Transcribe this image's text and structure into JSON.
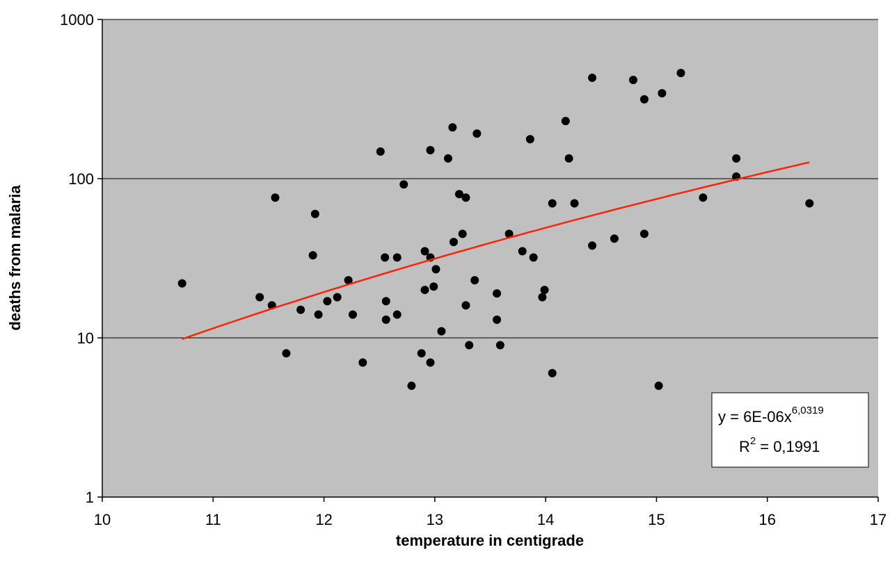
{
  "chart_data": {
    "type": "scatter",
    "x_label": "temperature in centigrade",
    "y_label": "deaths from malaria",
    "xlim": [
      10,
      17
    ],
    "xticks": [
      10,
      11,
      12,
      13,
      14,
      15,
      16,
      17
    ],
    "ylim": [
      1,
      1000
    ],
    "yticks": [
      1,
      10,
      100,
      1000
    ],
    "y_log": true,
    "grid": true,
    "background": "#c0c0c0",
    "color": "#000000",
    "x": [
      10.72,
      11.42,
      11.53,
      11.56,
      11.66,
      11.79,
      11.9,
      11.92,
      11.95,
      12.03,
      12.12,
      12.22,
      12.26,
      12.35,
      12.51,
      12.55,
      12.56,
      12.56,
      12.66,
      12.66,
      12.72,
      12.79,
      12.88,
      12.91,
      12.91,
      12.96,
      12.96,
      12.96,
      12.99,
      13.01,
      13.06,
      13.12,
      13.16,
      13.17,
      13.22,
      13.25,
      13.28,
      13.28,
      13.31,
      13.36,
      13.38,
      13.56,
      13.56,
      13.59,
      13.67,
      13.79,
      13.86,
      13.89,
      13.97,
      13.99,
      14.06,
      14.06,
      14.18,
      14.21,
      14.26,
      14.42,
      14.42,
      14.62,
      14.79,
      14.89,
      14.89,
      15.02,
      15.05,
      15.22,
      15.42,
      15.72,
      15.72,
      16.38
    ],
    "values": [
      22,
      18,
      16,
      76,
      8,
      15,
      33,
      60,
      14,
      17,
      18,
      23,
      14,
      7,
      148,
      32,
      17,
      13,
      32,
      14,
      92,
      5,
      8,
      35,
      20,
      151,
      32,
      7,
      21,
      27,
      11,
      134,
      210,
      40,
      80,
      45,
      76,
      16,
      9,
      23,
      192,
      19,
      13,
      9,
      45,
      35,
      177,
      32,
      18,
      20,
      6,
      70,
      230,
      134,
      70,
      430,
      38,
      42,
      417,
      315,
      45,
      5,
      344,
      461,
      76,
      134,
      103,
      70
    ],
    "trendline": {
      "type": "power",
      "coefficient": 6e-06,
      "exponent": 6.0319,
      "x_start": 10.72,
      "x_end": 16.38,
      "color": "#ff2200",
      "equation": "y = 6E-06x",
      "equation_exponent": "6,0319",
      "r2_symbol": "R",
      "r2_exponent": "2",
      "r2_value": "= 0,1991"
    }
  }
}
